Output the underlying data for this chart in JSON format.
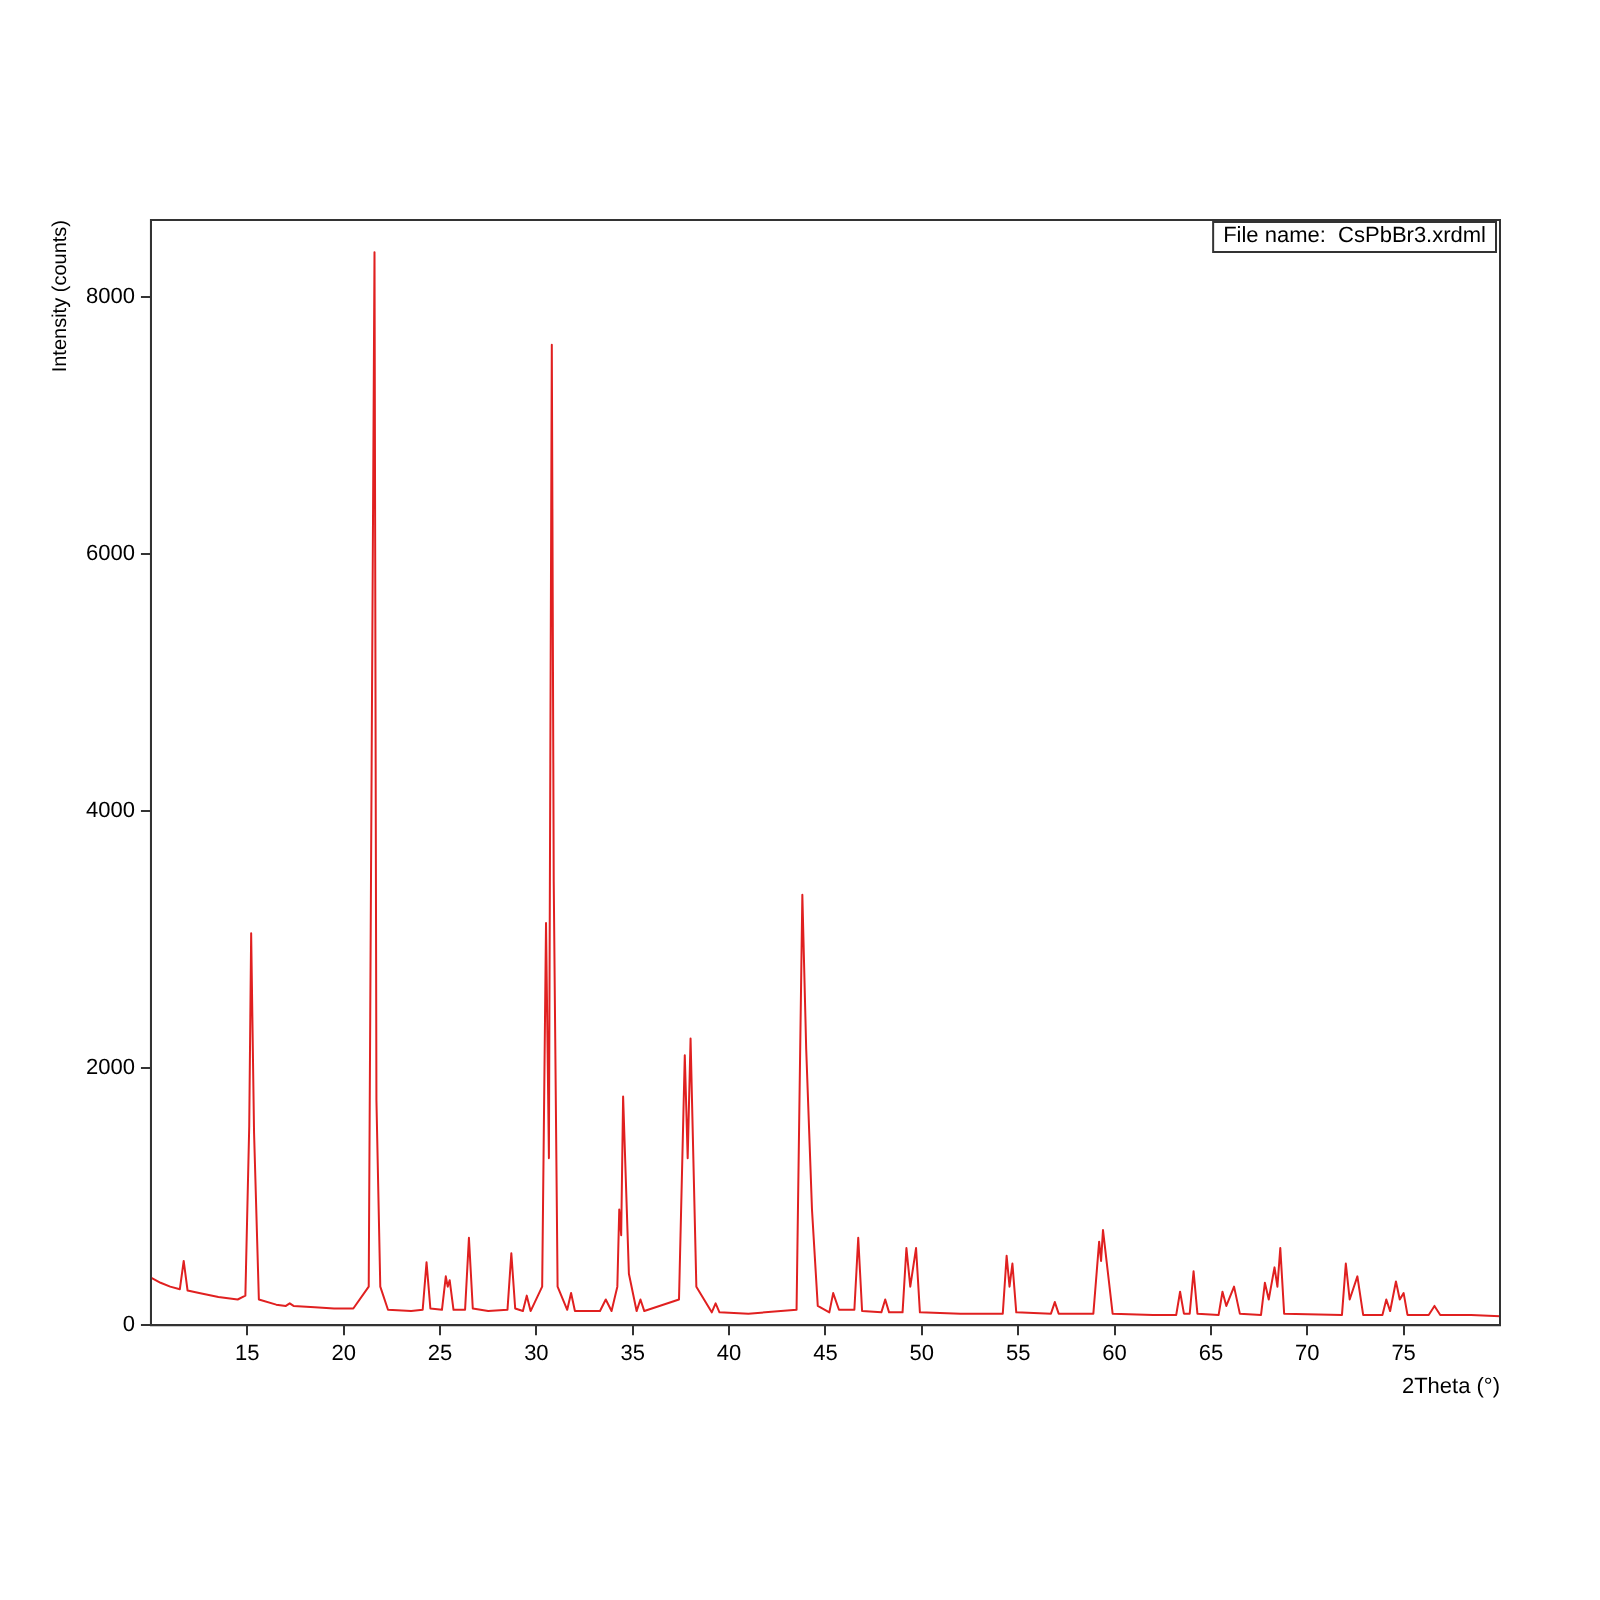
{
  "chart_data": {
    "type": "line",
    "xlabel": "2Theta (°)",
    "ylabel": "Intensity (counts)",
    "annotations": [
      "File name:  CsPbBr3.xrdml"
    ],
    "xlim": [
      10,
      80
    ],
    "ylim": [
      0,
      8600
    ],
    "xticks": [
      15,
      20,
      25,
      30,
      35,
      40,
      45,
      50,
      55,
      60,
      65,
      70,
      75
    ],
    "yticks": [
      0,
      2000,
      4000,
      6000,
      8000
    ],
    "marker": "none",
    "line_style": "solid",
    "series": [
      {
        "color": "#e02020",
        "x": [
          10,
          10.5,
          11,
          11.5,
          11.7,
          11.9,
          12.5,
          13.5,
          14.5,
          14.9,
          15.1,
          15.2,
          15.35,
          15.6,
          16.5,
          17.0,
          17.2,
          17.4,
          18.5,
          19.5,
          20.5,
          21.3,
          21.6,
          21.7,
          21.9,
          22.3,
          23.5,
          24.1,
          24.3,
          24.5,
          25.1,
          25.3,
          25.4,
          25.5,
          25.7,
          26.3,
          26.5,
          26.7,
          27.5,
          28.5,
          28.7,
          28.9,
          29.3,
          29.5,
          29.7,
          30.3,
          30.5,
          30.65,
          30.8,
          30.9,
          31.1,
          31.6,
          31.8,
          32.0,
          33.3,
          33.6,
          33.9,
          34.2,
          34.3,
          34.4,
          34.5,
          34.8,
          35.2,
          35.4,
          35.6,
          37.4,
          37.7,
          37.85,
          38.0,
          38.3,
          39.1,
          39.3,
          39.5,
          41,
          43.5,
          43.8,
          44.0,
          44.3,
          44.6,
          45.2,
          45.4,
          45.7,
          46.5,
          46.7,
          46.9,
          47.9,
          48.1,
          48.3,
          49.0,
          49.2,
          49.4,
          49.7,
          49.9,
          52,
          54.2,
          54.4,
          54.55,
          54.7,
          54.9,
          56.7,
          56.9,
          57.1,
          58.9,
          59.2,
          59.3,
          59.4,
          59.7,
          59.9,
          62,
          63.2,
          63.4,
          63.6,
          63.9,
          64.1,
          64.3,
          65.4,
          65.6,
          65.8,
          66.2,
          66.5,
          67.6,
          67.8,
          68.0,
          68.3,
          68.45,
          68.6,
          68.8,
          71.8,
          72.0,
          72.2,
          72.6,
          72.9,
          73.9,
          74.1,
          74.3,
          74.6,
          74.8,
          75.0,
          75.2,
          76.3,
          76.6,
          76.9,
          78.5,
          80
        ],
        "values": [
          370,
          330,
          300,
          280,
          500,
          270,
          250,
          220,
          200,
          230,
          1550,
          3050,
          1500,
          200,
          160,
          150,
          170,
          150,
          140,
          130,
          130,
          300,
          8350,
          1750,
          300,
          120,
          110,
          120,
          490,
          130,
          120,
          380,
          300,
          350,
          120,
          120,
          680,
          130,
          110,
          120,
          560,
          130,
          110,
          230,
          110,
          300,
          3130,
          1300,
          7630,
          3450,
          300,
          120,
          250,
          110,
          110,
          200,
          110,
          300,
          900,
          700,
          1780,
          400,
          110,
          200,
          110,
          200,
          2100,
          1300,
          2230,
          300,
          100,
          170,
          100,
          90,
          120,
          3350,
          2150,
          900,
          150,
          100,
          250,
          120,
          120,
          680,
          110,
          100,
          200,
          100,
          100,
          600,
          300,
          600,
          100,
          90,
          90,
          540,
          300,
          480,
          100,
          90,
          180,
          90,
          90,
          650,
          500,
          740,
          350,
          90,
          80,
          80,
          260,
          90,
          90,
          420,
          90,
          80,
          260,
          150,
          300,
          90,
          80,
          330,
          200,
          450,
          300,
          600,
          90,
          80,
          480,
          200,
          380,
          80,
          80,
          200,
          110,
          340,
          200,
          250,
          80,
          80,
          150,
          80,
          80,
          70
        ]
      }
    ]
  }
}
